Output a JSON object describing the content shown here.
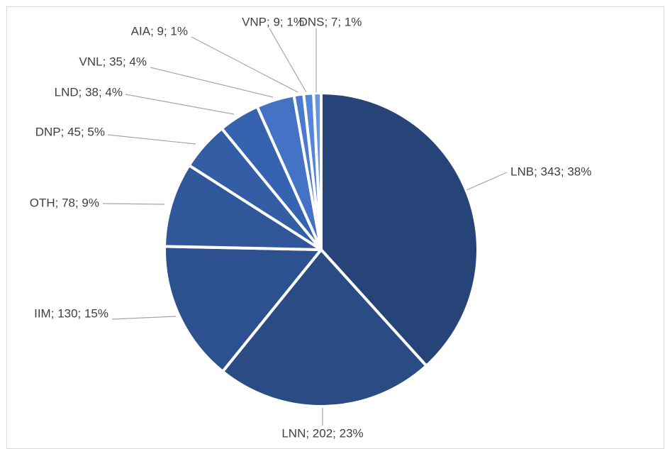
{
  "chart_data": {
    "type": "pie",
    "values": [
      343,
      202,
      130,
      78,
      45,
      38,
      35,
      9,
      9,
      7
    ],
    "value_labels": [
      "LNB; 343; 38%",
      "LNN; 202; 23%",
      "IIM; 130; 15%",
      "OTH; 78; 9%",
      "DNP; 45; 5%",
      "LND; 38; 4%",
      "VNL; 35; 4%",
      "AIA; 9; 1%",
      "VNP; 9; 1%",
      "DNS; 7; 1%"
    ],
    "colors": [
      "#264478",
      "#2a4b84",
      "#2d518f",
      "#30579a",
      "#335da5",
      "#3663b0",
      "#4472c4",
      "#4a7bd0",
      "#5585d8",
      "#6b94de"
    ]
  }
}
